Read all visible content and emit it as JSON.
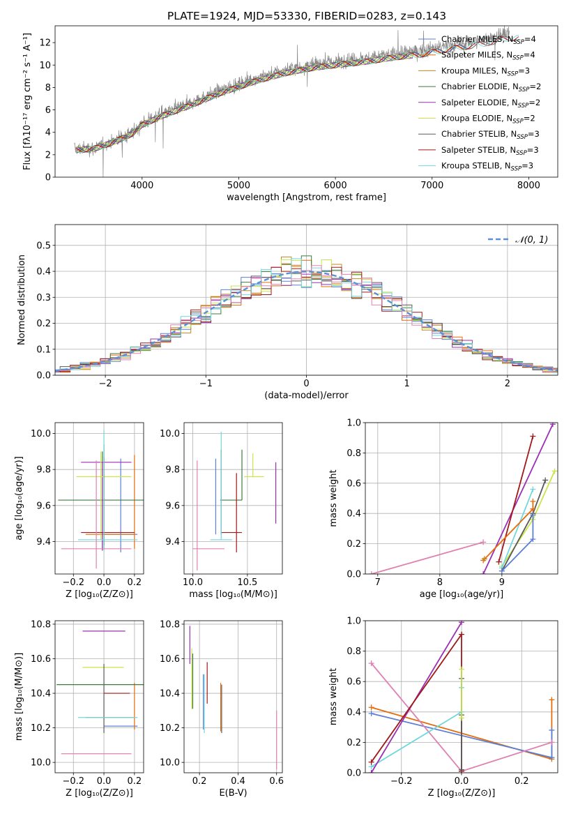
{
  "colors": {
    "Chabrier MILES": "#5b7fd6",
    "Salpeter MILES": "#e46c0a",
    "Kroupa MILES": "#c08a1e",
    "Chabrier ELODIE": "#3c7a3c",
    "Salpeter ELODIE": "#9b2fb4",
    "Kroupa ELODIE": "#c8e64a",
    "Chabrier STELIB": "#5a5a5a",
    "Salpeter STELIB": "#a01818",
    "Kroupa STELIB": "#72d6de",
    "data": "#888888",
    "gaussian": "#5b8fd6",
    "extra_pink": "#e080b0"
  },
  "chart_data": [
    {
      "panel": "spectrum",
      "type": "line",
      "title": "PLATE=1924, MJD=53330, FIBERID=0283, z=0.143",
      "xlabel": "wavelength [Angstrom, rest frame]",
      "ylabel": "Flux [fλ10⁻¹⁷ erg cm⁻² s⁻¹ A⁻¹]",
      "xlim": [
        3100,
        8300
      ],
      "ylim": [
        0,
        13.5
      ],
      "xticks": [
        4000,
        5000,
        6000,
        7000,
        8000
      ],
      "yticks": [
        0,
        2,
        4,
        6,
        8,
        10,
        12
      ],
      "legend_position": "right",
      "legend": [
        {
          "model": "Chabrier MILES",
          "n": "4"
        },
        {
          "model": "Salpeter MILES",
          "n": "4"
        },
        {
          "model": "Kroupa MILES",
          "n": "3"
        },
        {
          "model": "Chabrier ELODIE",
          "n": "2"
        },
        {
          "model": "Salpeter ELODIE",
          "n": "2"
        },
        {
          "model": "Kroupa ELODIE",
          "n": "2"
        },
        {
          "model": "Chabrier STELIB",
          "n": "3"
        },
        {
          "model": "Salpeter STELIB",
          "n": "3"
        },
        {
          "model": "Kroupa STELIB",
          "n": "3"
        }
      ],
      "continuum": {
        "x": [
          3300,
          3500,
          3700,
          3900,
          4000,
          4200,
          4500,
          4800,
          5000,
          5200,
          5500,
          5800,
          6000,
          6300,
          6600,
          6900,
          7200,
          7500,
          7800
        ],
        "y": [
          2.5,
          2.6,
          3.2,
          4.0,
          4.8,
          5.6,
          6.6,
          7.7,
          8.3,
          8.9,
          9.6,
          10.1,
          10.3,
          10.6,
          11.0,
          11.3,
          11.8,
          12.2,
          12.8
        ]
      }
    },
    {
      "panel": "residuals",
      "type": "step",
      "xlabel": "(data-model)/error",
      "ylabel": "Normed distribution",
      "xlim": [
        -2.5,
        2.5
      ],
      "ylim": [
        0,
        0.58
      ],
      "xticks": [
        -2,
        -1,
        0,
        1,
        2
      ],
      "yticks": [
        0.0,
        0.1,
        0.2,
        0.3,
        0.4,
        0.5
      ],
      "gaussian_label": "𝒩(0, 1)",
      "legend_position": "top-right"
    },
    {
      "panel": "age-vs-Z",
      "type": "errorbar",
      "xlabel": "Z [log₁₀(Z/Z⊙)]",
      "ylabel": "age  [log₁₀(age/yr)]",
      "xlim": [
        -0.32,
        0.26
      ],
      "ylim": [
        9.22,
        10.06
      ],
      "xticks": [
        -0.2,
        0.0,
        0.2
      ],
      "yticks": [
        9.4,
        9.6,
        9.8,
        10.0
      ],
      "points": [
        {
          "model": "Chabrier MILES",
          "x": 0.11,
          "xerr": [
            0.11,
            0.11
          ],
          "y": 9.44,
          "yerr": [
            0.1,
            0.42
          ]
        },
        {
          "model": "Salpeter MILES",
          "x": 0.2,
          "xerr": [
            0.32,
            0.0
          ],
          "y": 9.44,
          "yerr": [
            0.08,
            0.44
          ]
        },
        {
          "model": "Kroupa MILES",
          "x": 0.21,
          "xerr": [
            0.0,
            0.0
          ],
          "y": 9.44,
          "yerr": [
            0.0,
            0.0
          ]
        },
        {
          "model": "Chabrier ELODIE",
          "x": -0.01,
          "xerr": [
            0.29,
            0.31
          ],
          "y": 9.63,
          "yerr": [
            0.28,
            0.27
          ]
        },
        {
          "model": "Salpeter ELODIE",
          "x": -0.01,
          "xerr": [
            0.14,
            0.19
          ],
          "y": 9.84,
          "yerr": [
            0.49,
            0.0
          ]
        },
        {
          "model": "Kroupa ELODIE",
          "x": -0.02,
          "xerr": [
            0.16,
            0.2
          ],
          "y": 9.76,
          "yerr": [
            0.35,
            0.14
          ]
        },
        {
          "model": "Chabrier STELIB",
          "x": 0.0,
          "xerr": [
            0.0,
            0.0
          ],
          "y": 9.44,
          "yerr": [
            0.08,
            0.5
          ]
        },
        {
          "model": "Salpeter STELIB",
          "x": 0.0,
          "xerr": [
            0.15,
            0.2
          ],
          "y": 9.45,
          "yerr": [
            0.07,
            0.42
          ]
        },
        {
          "model": "Kroupa STELIB",
          "x": 0.0,
          "xerr": [
            0.17,
            0.22
          ],
          "y": 9.41,
          "yerr": [
            0.06,
            0.61
          ]
        },
        {
          "model": "pink",
          "x": -0.05,
          "xerr": [
            0.23,
            0.23
          ],
          "y": 9.36,
          "yerr": [
            0.11,
            0.49
          ]
        }
      ]
    },
    {
      "panel": "age-vs-mass",
      "type": "errorbar",
      "xlabel": "mass [log₁₀(M/M⊙)]",
      "ylabel": "",
      "xlim": [
        9.92,
        10.82
      ],
      "ylim": [
        9.22,
        10.06
      ],
      "xticks": [
        10.0,
        10.5
      ],
      "yticks": [
        9.4,
        9.6,
        9.8,
        10.0
      ],
      "points": [
        {
          "model": "Chabrier MILES",
          "x": 10.21,
          "xerr": [
            0.0,
            0.0
          ],
          "y": 9.44,
          "yerr": [
            0.0,
            0.42
          ]
        },
        {
          "model": "Chabrier ELODIE",
          "x": 10.45,
          "xerr": [
            0.2,
            0.0
          ],
          "y": 9.63,
          "yerr": [
            0.0,
            0.28
          ]
        },
        {
          "model": "Salpeter ELODIE",
          "x": 10.76,
          "xerr": [
            0.0,
            0.0
          ],
          "y": 9.84,
          "yerr": [
            0.34,
            0.0
          ]
        },
        {
          "model": "Kroupa ELODIE",
          "x": 10.55,
          "xerr": [
            0.08,
            0.1
          ],
          "y": 9.76,
          "yerr": [
            0.0,
            0.13
          ]
        },
        {
          "model": "Chabrier STELIB",
          "x": 10.26,
          "xerr": [
            0.0,
            0.0
          ],
          "y": 9.44,
          "yerr": [
            0.0,
            0.47
          ]
        },
        {
          "model": "Salpeter STELIB",
          "x": 10.4,
          "xerr": [
            0.14,
            0.05
          ],
          "y": 9.45,
          "yerr": [
            0.11,
            0.33
          ]
        },
        {
          "model": "Kroupa STELIB",
          "x": 10.26,
          "xerr": [
            0.1,
            0.1
          ],
          "y": 9.41,
          "yerr": [
            0.0,
            0.6
          ]
        },
        {
          "model": "pink",
          "x": 10.04,
          "xerr": [
            0.04,
            0.25
          ],
          "y": 9.36,
          "yerr": [
            0.12,
            0.49
          ]
        }
      ]
    },
    {
      "panel": "weight-vs-age",
      "type": "line",
      "xlabel": "age  [log₁₀(age/yr)]",
      "ylabel": "mass weight",
      "xlim": [
        6.8,
        9.9
      ],
      "ylim": [
        0.0,
        1.0
      ],
      "xticks": [
        7,
        8,
        9
      ],
      "yticks": [
        0.0,
        0.2,
        0.4,
        0.6,
        0.8,
        1.0
      ],
      "series": [
        {
          "model": "pink",
          "x": [
            6.9,
            8.7
          ],
          "y": [
            0.0,
            0.21
          ]
        },
        {
          "model": "Salpeter ELODIE",
          "x": [
            8.7,
            9.82
          ],
          "y": [
            0.0,
            0.99
          ]
        },
        {
          "model": "Salpeter STELIB",
          "x": [
            8.95,
            9.5
          ],
          "y": [
            0.08,
            0.91
          ]
        },
        {
          "model": "Kroupa ELODIE",
          "x": [
            9.0,
            9.5,
            9.85
          ],
          "y": [
            0.05,
            0.36,
            0.68
          ]
        },
        {
          "model": "Kroupa STELIB",
          "x": [
            9.0,
            9.5
          ],
          "y": [
            0.04,
            0.56
          ]
        },
        {
          "model": "Chabrier STELIB",
          "x": [
            9.0,
            9.5,
            9.7
          ],
          "y": [
            0.02,
            0.4,
            0.62
          ]
        },
        {
          "model": "Chabrier MILES",
          "x": [
            9.0,
            9.5,
            9.5
          ],
          "y": [
            0.02,
            0.23,
            0.39
          ]
        },
        {
          "model": "Salpeter MILES",
          "x": [
            8.7,
            9.5,
            9.5
          ],
          "y": [
            0.09,
            0.43,
            0.48
          ]
        },
        {
          "model": "Kroupa MILES",
          "x": [
            8.72
          ],
          "y": [
            0.1
          ]
        }
      ]
    },
    {
      "panel": "mass-vs-Z",
      "type": "errorbar",
      "xlabel": "Z [log₁₀(Z/Z⊙)]",
      "ylabel": "mass [log₁₀(M/M⊙)]",
      "xlim": [
        -0.32,
        0.26
      ],
      "ylim": [
        9.94,
        10.82
      ],
      "xticks": [
        -0.2,
        0.0,
        0.2
      ],
      "yticks": [
        10.0,
        10.2,
        10.4,
        10.6,
        10.8
      ],
      "points": [
        {
          "model": "Chabrier MILES",
          "x": 0.11,
          "xerr": [
            0.11,
            0.11
          ],
          "y": 10.21,
          "yerr": [
            0.0,
            0.0
          ]
        },
        {
          "model": "Salpeter MILES",
          "x": 0.2,
          "xerr": [
            0.32,
            0.0
          ],
          "y": 10.26,
          "yerr": [
            0.07,
            0.2
          ]
        },
        {
          "model": "Chabrier ELODIE",
          "x": 0.0,
          "xerr": [
            0.31,
            0.31
          ],
          "y": 10.45,
          "yerr": [
            0.0,
            0.0
          ]
        },
        {
          "model": "Salpeter ELODIE",
          "x": 0.0,
          "xerr": [
            0.14,
            0.14
          ],
          "y": 10.76,
          "yerr": [
            0.0,
            0.0
          ]
        },
        {
          "model": "Kroupa ELODIE",
          "x": 0.0,
          "xerr": [
            0.14,
            0.13
          ],
          "y": 10.55,
          "yerr": [
            0.0,
            0.0
          ]
        },
        {
          "model": "Chabrier STELIB",
          "x": 0.0,
          "xerr": [
            0.0,
            0.0
          ],
          "y": 10.26,
          "yerr": [
            0.09,
            0.31
          ]
        },
        {
          "model": "Salpeter STELIB",
          "x": 0.03,
          "xerr": [
            0.03,
            0.14
          ],
          "y": 10.4,
          "yerr": [
            0.0,
            0.0
          ]
        },
        {
          "model": "Kroupa STELIB",
          "x": 0.0,
          "xerr": [
            0.17,
            0.22
          ],
          "y": 10.26,
          "yerr": [
            0.0,
            0.0
          ]
        },
        {
          "model": "pink",
          "x": -0.05,
          "xerr": [
            0.23,
            0.23
          ],
          "y": 10.05,
          "yerr": [
            0.0,
            0.0
          ]
        }
      ]
    },
    {
      "panel": "mass-vs-EBV",
      "type": "errorbar",
      "xlabel": "E(B-V)",
      "ylabel": "",
      "xlim": [
        0.12,
        0.63
      ],
      "ylim": [
        9.94,
        10.82
      ],
      "xticks": [
        0.2,
        0.4,
        0.6
      ],
      "yticks": [
        10.0,
        10.2,
        10.4,
        10.6,
        10.8
      ],
      "points": [
        {
          "model": "Salpeter ELODIE",
          "x": 0.15,
          "xerr": [
            0.0,
            0.0
          ],
          "y": 10.7,
          "yerr": [
            0.13,
            0.09
          ]
        },
        {
          "model": "Kroupa ELODIE",
          "x": 0.16,
          "xerr": [
            0.0,
            0.0
          ],
          "y": 10.45,
          "yerr": [
            0.14,
            0.21
          ]
        },
        {
          "model": "Chabrier ELODIE",
          "x": 0.165,
          "xerr": [
            0.0,
            0.0
          ],
          "y": 10.45,
          "yerr": [
            0.14,
            0.18
          ]
        },
        {
          "model": "Chabrier MILES",
          "x": 0.22,
          "xerr": [
            0.0,
            0.0
          ],
          "y": 10.26,
          "yerr": [
            0.07,
            0.25
          ]
        },
        {
          "model": "Kroupa STELIB",
          "x": 0.225,
          "xerr": [
            0.0,
            0.0
          ],
          "y": 10.26,
          "yerr": [
            0.09,
            0.25
          ]
        },
        {
          "model": "Salpeter STELIB",
          "x": 0.24,
          "xerr": [
            0.0,
            0.0
          ],
          "y": 10.45,
          "yerr": [
            0.11,
            0.13
          ]
        },
        {
          "model": "Salpeter MILES",
          "x": 0.31,
          "xerr": [
            0.0,
            0.0
          ],
          "y": 10.26,
          "yerr": [
            0.08,
            0.2
          ]
        },
        {
          "model": "Chabrier STELIB",
          "x": 0.315,
          "xerr": [
            0.0,
            0.0
          ],
          "y": 10.26,
          "yerr": [
            0.09,
            0.19
          ]
        },
        {
          "model": "pink",
          "x": 0.6,
          "xerr": [
            0.0,
            0.0
          ],
          "y": 10.1,
          "yerr": [
            0.14,
            0.2
          ]
        }
      ]
    },
    {
      "panel": "weight-vs-Z",
      "type": "line",
      "xlabel": "Z [log₁₀(Z/Z⊙)]",
      "ylabel": "mass weight",
      "xlim": [
        -0.32,
        0.32
      ],
      "ylim": [
        0.0,
        1.0
      ],
      "xticks": [
        -0.2,
        0.0,
        0.2
      ],
      "yticks": [
        0.0,
        0.2,
        0.4,
        0.6,
        0.8,
        1.0
      ],
      "series": [
        {
          "model": "Salpeter MILES",
          "x": [
            -0.3,
            0.3,
            0.3
          ],
          "y": [
            0.43,
            0.09,
            0.48
          ]
        },
        {
          "model": "Chabrier MILES",
          "x": [
            -0.3,
            0.3,
            0.3
          ],
          "y": [
            0.39,
            0.1,
            0.28
          ]
        },
        {
          "model": "pink",
          "x": [
            -0.3,
            0.0,
            0.3
          ],
          "y": [
            0.72,
            0.01,
            0.2
          ]
        },
        {
          "model": "Kroupa STELIB",
          "x": [
            -0.3,
            0.0,
            0.0
          ],
          "y": [
            0.04,
            0.4,
            0.56
          ]
        },
        {
          "model": "Salpeter ELODIE",
          "x": [
            -0.3,
            0.0
          ],
          "y": [
            0.0,
            0.99
          ]
        },
        {
          "model": "Salpeter STELIB",
          "x": [
            -0.3,
            0.0,
            0.0
          ],
          "y": [
            0.07,
            0.91,
            0.01
          ]
        },
        {
          "model": "Chabrier STELIB",
          "x": [
            0.0,
            0.0,
            0.0
          ],
          "y": [
            0.62,
            0.38,
            0.02
          ]
        },
        {
          "model": "Kroupa ELODIE",
          "x": [
            0.0,
            0.0
          ],
          "y": [
            0.68,
            0.36
          ]
        }
      ]
    }
  ]
}
